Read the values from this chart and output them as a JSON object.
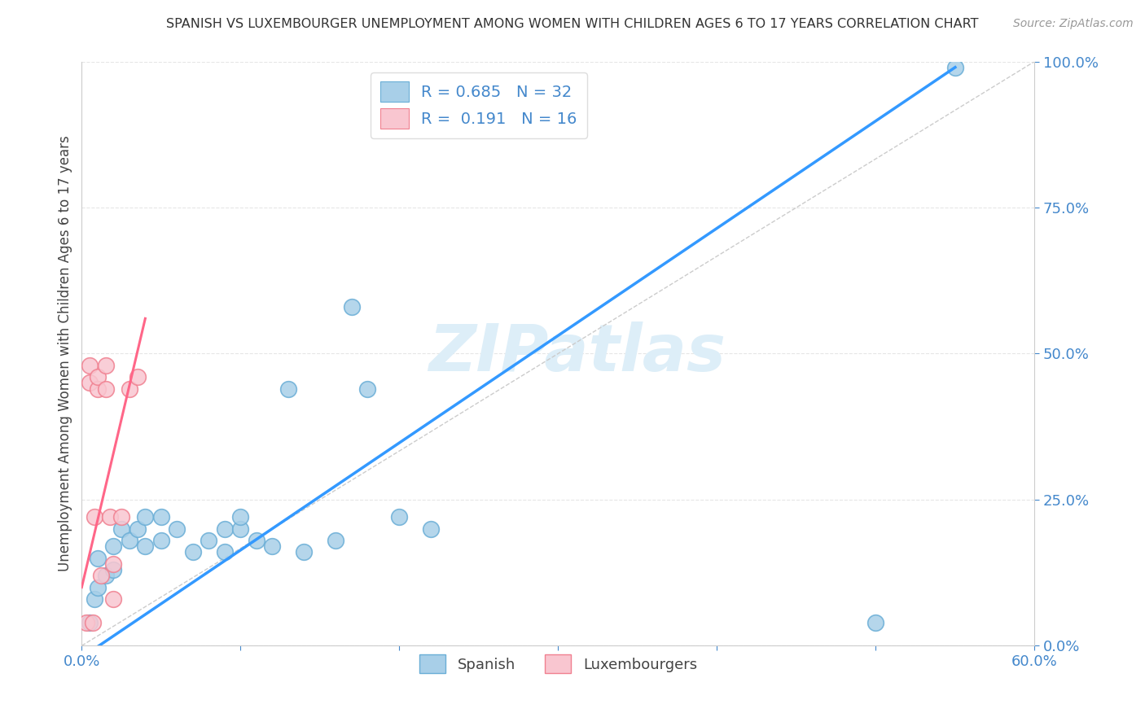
{
  "title": "SPANISH VS LUXEMBOURGER UNEMPLOYMENT AMONG WOMEN WITH CHILDREN AGES 6 TO 17 YEARS CORRELATION CHART",
  "source": "Source: ZipAtlas.com",
  "ylabel": "Unemployment Among Women with Children Ages 6 to 17 years",
  "xlim": [
    0.0,
    0.6
  ],
  "ylim": [
    0.0,
    1.0
  ],
  "xticks": [
    0.0,
    0.1,
    0.2,
    0.3,
    0.4,
    0.5,
    0.6
  ],
  "xticklabels": [
    "0.0%",
    "",
    "",
    "",
    "",
    "",
    "60.0%"
  ],
  "yticks": [
    0.0,
    0.25,
    0.5,
    0.75,
    1.0
  ],
  "yticklabels": [
    "0.0%",
    "25.0%",
    "50.0%",
    "75.0%",
    "100.0%"
  ],
  "legend_r_blue": "0.685",
  "legend_n_blue": "32",
  "legend_r_pink": "0.191",
  "legend_n_pink": "16",
  "blue_color": "#a8cfe8",
  "blue_edge_color": "#6aaed6",
  "pink_color": "#f9c6d0",
  "pink_edge_color": "#f08090",
  "blue_line_color": "#3399ff",
  "pink_line_color": "#ff6688",
  "watermark_text": "ZIPatlas",
  "watermark_color": "#ddeef8",
  "blue_scatter_x": [
    0.005,
    0.008,
    0.01,
    0.01,
    0.015,
    0.02,
    0.02,
    0.025,
    0.03,
    0.035,
    0.04,
    0.04,
    0.05,
    0.05,
    0.06,
    0.07,
    0.08,
    0.09,
    0.09,
    0.1,
    0.1,
    0.11,
    0.12,
    0.13,
    0.14,
    0.16,
    0.17,
    0.18,
    0.2,
    0.22,
    0.5,
    0.55
  ],
  "blue_scatter_y": [
    0.04,
    0.08,
    0.1,
    0.15,
    0.12,
    0.13,
    0.17,
    0.2,
    0.18,
    0.2,
    0.17,
    0.22,
    0.18,
    0.22,
    0.2,
    0.16,
    0.18,
    0.16,
    0.2,
    0.2,
    0.22,
    0.18,
    0.17,
    0.44,
    0.16,
    0.18,
    0.58,
    0.44,
    0.22,
    0.2,
    0.04,
    0.99
  ],
  "pink_scatter_x": [
    0.003,
    0.005,
    0.005,
    0.007,
    0.008,
    0.01,
    0.01,
    0.012,
    0.015,
    0.015,
    0.018,
    0.02,
    0.02,
    0.025,
    0.03,
    0.035
  ],
  "pink_scatter_y": [
    0.04,
    0.45,
    0.48,
    0.04,
    0.22,
    0.44,
    0.46,
    0.12,
    0.44,
    0.48,
    0.22,
    0.08,
    0.14,
    0.22,
    0.44,
    0.46
  ],
  "blue_line_x": [
    0.0,
    0.55
  ],
  "blue_line_y": [
    -0.02,
    0.99
  ],
  "pink_line_x": [
    0.0,
    0.04
  ],
  "pink_line_y": [
    0.1,
    0.56
  ],
  "diag_line_x": [
    0.0,
    0.6
  ],
  "diag_line_y": [
    0.0,
    1.0
  ],
  "background_color": "#ffffff",
  "grid_color": "#e0e0e0",
  "spine_color": "#cccccc",
  "tick_color": "#4488cc",
  "ylabel_color": "#444444",
  "title_color": "#333333",
  "source_color": "#999999",
  "legend_label_color": "#4488cc",
  "bottom_legend_color": "#444444"
}
